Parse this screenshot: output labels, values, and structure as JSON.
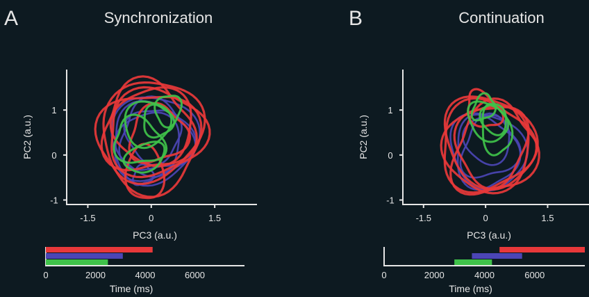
{
  "colors": {
    "red": "#e8383a",
    "blue": "#4b45b5",
    "green": "#3fc24a",
    "axis": "#e6e6e6",
    "background": "#0d1a21"
  },
  "chart_data": [
    {
      "type": "line",
      "panel": "A",
      "title": "Synchronization",
      "xlabel": "PC3 (a.u.)",
      "ylabel": "PC2 (a.u.)",
      "x_ticks": [
        "-1.5",
        "0",
        "1.5"
      ],
      "y_ticks": [
        "1",
        "0",
        "-1"
      ],
      "xlim": [
        -2.0,
        2.5
      ],
      "ylim": [
        -1.1,
        1.9
      ],
      "trajectories": [
        {
          "color": "blue",
          "loops": [
            {
              "cx": 0.05,
              "cy": 0.35,
              "rx": 1.05,
              "ry": 0.95
            },
            {
              "cx": 0.0,
              "cy": 0.3,
              "rx": 0.95,
              "ry": 0.85
            },
            {
              "cx": 0.1,
              "cy": 0.4,
              "rx": 0.85,
              "ry": 0.78
            },
            {
              "cx": -0.05,
              "cy": 0.25,
              "rx": 0.75,
              "ry": 0.7
            },
            {
              "cx": 0.05,
              "cy": 0.45,
              "rx": 0.65,
              "ry": 0.6
            },
            {
              "cx": -0.2,
              "cy": -0.45,
              "rx": 0.25,
              "ry": 0.2
            }
          ]
        },
        {
          "color": "red",
          "loops": [
            {
              "cx": 0.0,
              "cy": 0.55,
              "rx": 1.25,
              "ry": 1.05
            },
            {
              "cx": 0.1,
              "cy": 0.5,
              "rx": 1.15,
              "ry": 0.95
            },
            {
              "cx": -0.1,
              "cy": 0.6,
              "rx": 1.05,
              "ry": 1.0
            },
            {
              "cx": 0.05,
              "cy": 0.65,
              "rx": 0.95,
              "ry": 0.85
            },
            {
              "cx": -0.05,
              "cy": 0.3,
              "rx": 1.2,
              "ry": 1.1
            },
            {
              "cx": 0.15,
              "cy": 0.45,
              "rx": 0.7,
              "ry": 0.6
            },
            {
              "cx": -0.15,
              "cy": -0.4,
              "rx": 0.45,
              "ry": 0.6
            }
          ]
        },
        {
          "color": "green",
          "loops": [
            {
              "cx": -0.1,
              "cy": 0.7,
              "rx": 0.55,
              "ry": 0.5
            },
            {
              "cx": 0.15,
              "cy": 0.75,
              "rx": 0.35,
              "ry": 0.35
            },
            {
              "cx": -0.3,
              "cy": 0.3,
              "rx": 0.6,
              "ry": 0.5
            },
            {
              "cx": -0.15,
              "cy": -0.05,
              "rx": 0.5,
              "ry": 0.3
            },
            {
              "cx": 0.4,
              "cy": 1.0,
              "rx": 0.3,
              "ry": 0.35
            }
          ]
        }
      ],
      "timeline": {
        "xlabel": "Time (ms)",
        "x_ticks": [
          "0",
          "2000",
          "4000",
          "6000"
        ],
        "xlim": [
          0,
          8000
        ],
        "bars": [
          {
            "color": "red",
            "start": 0,
            "end": 4300
          },
          {
            "color": "blue",
            "start": 0,
            "end": 3100
          },
          {
            "color": "green",
            "start": 0,
            "end": 2500
          }
        ]
      }
    },
    {
      "type": "line",
      "panel": "B",
      "title": "Continuation",
      "xlabel": "PC3 (a.u.)",
      "ylabel": "PC2 (a.u.)",
      "x_ticks": [
        "-1.5",
        "0",
        "1.5"
      ],
      "y_ticks": [
        "1",
        "0",
        "-1"
      ],
      "xlim": [
        -2.0,
        2.5
      ],
      "ylim": [
        -1.1,
        1.9
      ],
      "trajectories": [
        {
          "color": "blue",
          "loops": [
            {
              "cx": 0.05,
              "cy": 0.1,
              "rx": 0.85,
              "ry": 0.9
            },
            {
              "cx": 0.0,
              "cy": 0.05,
              "rx": 0.75,
              "ry": 0.8
            },
            {
              "cx": 0.1,
              "cy": 0.15,
              "rx": 0.65,
              "ry": 0.7
            },
            {
              "cx": 0.05,
              "cy": 0.35,
              "rx": 0.55,
              "ry": 0.55
            }
          ]
        },
        {
          "color": "red",
          "loops": [
            {
              "cx": 0.1,
              "cy": 0.3,
              "rx": 1.0,
              "ry": 1.1
            },
            {
              "cx": 0.0,
              "cy": 0.2,
              "rx": 1.1,
              "ry": 1.0
            },
            {
              "cx": 0.2,
              "cy": 0.1,
              "rx": 0.95,
              "ry": 1.05
            },
            {
              "cx": 0.05,
              "cy": 0.15,
              "rx": 1.05,
              "ry": 0.95
            },
            {
              "cx": 0.15,
              "cy": 0.25,
              "rx": 0.85,
              "ry": 0.9
            },
            {
              "cx": -0.05,
              "cy": 1.0,
              "rx": 0.35,
              "ry": 0.45
            }
          ]
        },
        {
          "color": "green",
          "loops": [
            {
              "cx": 0.05,
              "cy": 0.75,
              "rx": 0.4,
              "ry": 0.5
            },
            {
              "cx": 0.25,
              "cy": 0.55,
              "rx": 0.35,
              "ry": 0.55
            },
            {
              "cx": -0.05,
              "cy": 1.05,
              "rx": 0.25,
              "ry": 0.3
            },
            {
              "cx": 0.2,
              "cy": 0.8,
              "rx": 0.3,
              "ry": 0.35
            }
          ]
        }
      ],
      "timeline": {
        "xlabel": "Time (ms)",
        "x_ticks": [
          "0",
          "2000",
          "4000",
          "6000"
        ],
        "xlim": [
          0,
          8000
        ],
        "bars": [
          {
            "color": "red",
            "start": 4600,
            "end": 8000
          },
          {
            "color": "blue",
            "start": 3500,
            "end": 5500
          },
          {
            "color": "green",
            "start": 2800,
            "end": 4300
          }
        ]
      }
    }
  ]
}
